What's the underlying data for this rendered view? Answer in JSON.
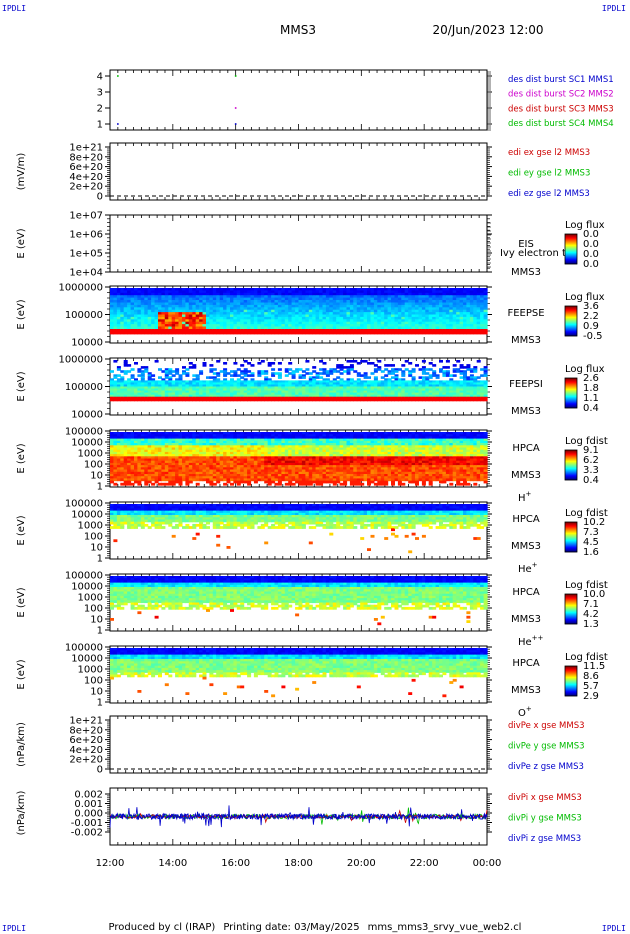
{
  "header": {
    "corner_label": "IPDLI",
    "spacecraft": "MMS3",
    "datetime": "20/Jun/2023 12:00"
  },
  "footer": {
    "producer": "Produced by cl (IRAP)",
    "printing_date": "Printing date: 03/May/2025",
    "script": "mms_mms3_srvy_vue_web2.cl"
  },
  "time_axis": {
    "ticks": [
      "12:00",
      "14:00",
      "16:00",
      "18:00",
      "20:00",
      "22:00",
      "00:00"
    ]
  },
  "colors": {
    "blue": "#0000cc",
    "magenta": "#cc00cc",
    "red": "#cc0000",
    "green": "#00bb00"
  },
  "chart_data": [
    {
      "type": "scatter",
      "panel": "burst",
      "yticks": [
        "4",
        "3",
        "2",
        "1"
      ],
      "ylim": [
        0.5,
        4.5
      ],
      "series": [
        {
          "name": "des dist burst SC1 MMS1",
          "color": "#0000cc",
          "y": 1,
          "x": [
            "12:15",
            "16:00"
          ]
        },
        {
          "name": "des dist burst SC2 MMS2",
          "color": "#cc00cc",
          "y": 2,
          "x": [
            "16:00"
          ]
        },
        {
          "name": "des dist burst SC3 MMS3",
          "color": "#cc0000",
          "y": 3,
          "x": []
        },
        {
          "name": "des dist burst SC4 MMS4",
          "color": "#00bb00",
          "y": 4,
          "x": [
            "12:15",
            "16:00"
          ]
        }
      ]
    },
    {
      "type": "line",
      "panel": "edi",
      "ylabel": "(mV/m)",
      "yticks": [
        "1e+21",
        "8e+20",
        "6e+20",
        "4e+20",
        "2e+20",
        "0"
      ],
      "series": [
        {
          "name": "edi ex gse l2 MMS3",
          "color": "#cc0000"
        },
        {
          "name": "edi ey gse l2 MMS3",
          "color": "#00bb00"
        },
        {
          "name": "edi ez gse l2 MMS3",
          "color": "#0000cc"
        }
      ]
    },
    {
      "type": "heatmap",
      "panel": "eis",
      "ylabel": "E (eV)",
      "yticks": [
        "1e+07",
        "1e+06",
        "1e+05",
        "1e+04"
      ],
      "instrument": [
        "EIS",
        "MMS3"
      ],
      "overlay_text": "Ivy electron to",
      "colorbar_title": "Log flux",
      "colorbar_ticks": [
        "0.0",
        "0.0",
        "0.0",
        "0.0"
      ]
    },
    {
      "type": "heatmap",
      "panel": "feepse",
      "ylabel": "E (eV)",
      "yticks": [
        "1000000",
        "100000",
        "10000"
      ],
      "instrument": [
        "FEEPSE",
        "MMS3"
      ],
      "colorbar_title": "Log flux",
      "colorbar_ticks": [
        "3.6",
        "2.2",
        "0.9",
        "-0.5"
      ]
    },
    {
      "type": "heatmap",
      "panel": "feepsi",
      "ylabel": "E (eV)",
      "yticks": [
        "1000000",
        "100000",
        "10000"
      ],
      "instrument": [
        "FEEPSI",
        "MMS3"
      ],
      "colorbar_title": "Log flux",
      "colorbar_ticks": [
        "2.6",
        "1.8",
        "1.1",
        "0.4"
      ]
    },
    {
      "type": "heatmap",
      "panel": "hpca_h",
      "ylabel": "E (eV)",
      "yticks": [
        "100000",
        "10000",
        "1000",
        "100",
        "10",
        "1"
      ],
      "instrument": [
        "HPCA",
        "MMS3"
      ],
      "species": "H",
      "charge": "+",
      "colorbar_title": "Log fdist",
      "colorbar_ticks": [
        "9.1",
        "6.2",
        "3.3",
        "0.4"
      ]
    },
    {
      "type": "heatmap",
      "panel": "hpca_he",
      "ylabel": "E (eV)",
      "yticks": [
        "100000",
        "10000",
        "1000",
        "100",
        "10",
        "1"
      ],
      "instrument": [
        "HPCA",
        "MMS3"
      ],
      "species": "He",
      "charge": "+",
      "colorbar_title": "Log fdist",
      "colorbar_ticks": [
        "10.2",
        "7.3",
        "4.5",
        "1.6"
      ]
    },
    {
      "type": "heatmap",
      "panel": "hpca_hepp",
      "ylabel": "E (eV)",
      "yticks": [
        "100000",
        "10000",
        "1000",
        "100",
        "10",
        "1"
      ],
      "instrument": [
        "HPCA",
        "MMS3"
      ],
      "species": "He",
      "charge": "++",
      "colorbar_title": "Log fdist",
      "colorbar_ticks": [
        "10.0",
        "7.1",
        "4.2",
        "1.3"
      ]
    },
    {
      "type": "heatmap",
      "panel": "hpca_o",
      "ylabel": "E (eV)",
      "yticks": [
        "100000",
        "10000",
        "1000",
        "100",
        "10",
        "1"
      ],
      "instrument": [
        "HPCA",
        "MMS3"
      ],
      "species": "O",
      "charge": "+",
      "colorbar_title": "Log fdist",
      "colorbar_ticks": [
        "11.5",
        "8.6",
        "5.7",
        "2.9"
      ]
    },
    {
      "type": "line",
      "panel": "divpe",
      "ylabel": "(nPa/km)",
      "yticks": [
        "1e+21",
        "8e+20",
        "6e+20",
        "4e+20",
        "2e+20",
        "0"
      ],
      "series": [
        {
          "name": "divPe x gse MMS3",
          "color": "#cc0000"
        },
        {
          "name": "divPe y gse MMS3",
          "color": "#00bb00"
        },
        {
          "name": "divPe z gse MMS3",
          "color": "#0000cc"
        }
      ]
    },
    {
      "type": "line",
      "panel": "divpi",
      "ylabel": "(nPa/km)",
      "yticks": [
        "0.002",
        "0.001",
        "0.000",
        "-0.001",
        "-0.002"
      ],
      "ylim": [
        -0.0028,
        0.0028
      ],
      "series": [
        {
          "name": "divPi x gse MMS3",
          "color": "#cc0000"
        },
        {
          "name": "divPi y gse MMS3",
          "color": "#00bb00"
        },
        {
          "name": "divPi z gse MMS3",
          "color": "#0000cc"
        }
      ]
    }
  ]
}
